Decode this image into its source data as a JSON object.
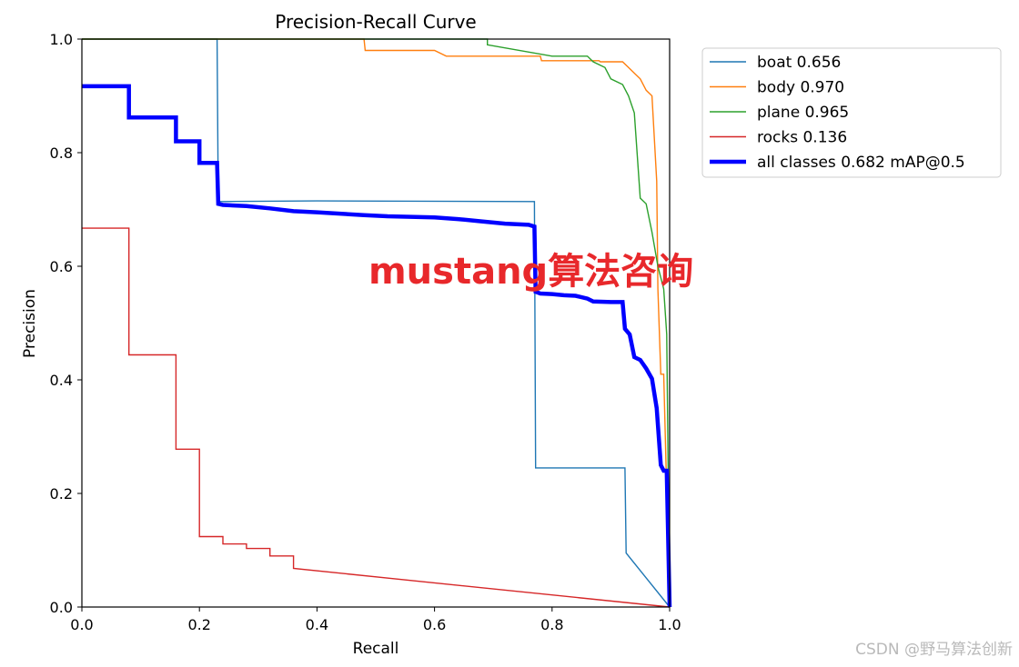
{
  "chart_data": {
    "type": "line",
    "title": "Precision-Recall Curve",
    "xlabel": "Recall",
    "ylabel": "Precision",
    "xlim": [
      0,
      1
    ],
    "ylim": [
      0,
      1
    ],
    "xticks": [
      "0.0",
      "0.2",
      "0.4",
      "0.6",
      "0.8",
      "1.0"
    ],
    "yticks": [
      "0.0",
      "0.2",
      "0.4",
      "0.6",
      "0.8",
      "1.0"
    ],
    "grid": false,
    "legend_position": "outside-top-right",
    "series": [
      {
        "name": "boat 0.656",
        "color": "#1f77b4",
        "line_width": "thin",
        "points": [
          [
            0.0,
            1.0
          ],
          [
            0.23,
            1.0
          ],
          [
            0.232,
            0.714
          ],
          [
            0.4,
            0.715
          ],
          [
            0.77,
            0.714
          ],
          [
            0.772,
            0.245
          ],
          [
            0.924,
            0.245
          ],
          [
            0.926,
            0.095
          ],
          [
            1.0,
            0.0
          ]
        ]
      },
      {
        "name": "body 0.970",
        "color": "#ff7f0e",
        "line_width": "thin",
        "points": [
          [
            0.0,
            1.0
          ],
          [
            0.48,
            1.0
          ],
          [
            0.482,
            0.98
          ],
          [
            0.6,
            0.98
          ],
          [
            0.62,
            0.97
          ],
          [
            0.78,
            0.97
          ],
          [
            0.782,
            0.962
          ],
          [
            0.88,
            0.962
          ],
          [
            0.882,
            0.96
          ],
          [
            0.92,
            0.96
          ],
          [
            0.93,
            0.95
          ],
          [
            0.94,
            0.94
          ],
          [
            0.95,
            0.93
          ],
          [
            0.96,
            0.91
          ],
          [
            0.97,
            0.9
          ],
          [
            0.978,
            0.75
          ],
          [
            0.98,
            0.56
          ],
          [
            0.985,
            0.41
          ],
          [
            0.99,
            0.41
          ],
          [
            1.0,
            0.0
          ]
        ]
      },
      {
        "name": "plane 0.965",
        "color": "#2ca02c",
        "line_width": "thin",
        "points": [
          [
            0.0,
            1.0
          ],
          [
            0.69,
            1.0
          ],
          [
            0.69,
            0.99
          ],
          [
            0.8,
            0.97
          ],
          [
            0.86,
            0.97
          ],
          [
            0.87,
            0.96
          ],
          [
            0.89,
            0.95
          ],
          [
            0.9,
            0.93
          ],
          [
            0.92,
            0.92
          ],
          [
            0.93,
            0.9
          ],
          [
            0.94,
            0.87
          ],
          [
            0.95,
            0.72
          ],
          [
            0.96,
            0.71
          ],
          [
            0.97,
            0.66
          ],
          [
            0.98,
            0.6
          ],
          [
            0.985,
            0.58
          ],
          [
            0.99,
            0.56
          ],
          [
            0.995,
            0.48
          ],
          [
            1.0,
            0.0
          ]
        ]
      },
      {
        "name": "rocks 0.136",
        "color": "#d62728",
        "line_width": "thin",
        "points": [
          [
            0.0,
            0.667
          ],
          [
            0.08,
            0.667
          ],
          [
            0.08,
            0.444
          ],
          [
            0.16,
            0.444
          ],
          [
            0.16,
            0.278
          ],
          [
            0.2,
            0.278
          ],
          [
            0.2,
            0.124
          ],
          [
            0.24,
            0.124
          ],
          [
            0.24,
            0.111
          ],
          [
            0.28,
            0.111
          ],
          [
            0.28,
            0.103
          ],
          [
            0.32,
            0.103
          ],
          [
            0.32,
            0.09
          ],
          [
            0.36,
            0.09
          ],
          [
            0.36,
            0.068
          ],
          [
            1.0,
            0.0
          ]
        ]
      },
      {
        "name": "all classes 0.682 mAP@0.5",
        "color": "#0000ff",
        "line_width": "thick",
        "points": [
          [
            0.0,
            0.917
          ],
          [
            0.08,
            0.917
          ],
          [
            0.08,
            0.862
          ],
          [
            0.16,
            0.862
          ],
          [
            0.16,
            0.82
          ],
          [
            0.2,
            0.82
          ],
          [
            0.2,
            0.782
          ],
          [
            0.23,
            0.782
          ],
          [
            0.232,
            0.71
          ],
          [
            0.24,
            0.708
          ],
          [
            0.28,
            0.706
          ],
          [
            0.32,
            0.702
          ],
          [
            0.36,
            0.697
          ],
          [
            0.4,
            0.695
          ],
          [
            0.48,
            0.69
          ],
          [
            0.52,
            0.688
          ],
          [
            0.6,
            0.686
          ],
          [
            0.64,
            0.683
          ],
          [
            0.68,
            0.679
          ],
          [
            0.7,
            0.677
          ],
          [
            0.72,
            0.675
          ],
          [
            0.76,
            0.673
          ],
          [
            0.77,
            0.67
          ],
          [
            0.772,
            0.555
          ],
          [
            0.78,
            0.552
          ],
          [
            0.8,
            0.551
          ],
          [
            0.82,
            0.549
          ],
          [
            0.84,
            0.548
          ],
          [
            0.86,
            0.543
          ],
          [
            0.87,
            0.538
          ],
          [
            0.9,
            0.537
          ],
          [
            0.92,
            0.537
          ],
          [
            0.924,
            0.49
          ],
          [
            0.932,
            0.48
          ],
          [
            0.94,
            0.44
          ],
          [
            0.95,
            0.435
          ],
          [
            0.96,
            0.42
          ],
          [
            0.97,
            0.402
          ],
          [
            0.978,
            0.35
          ],
          [
            0.985,
            0.25
          ],
          [
            0.99,
            0.24
          ],
          [
            0.995,
            0.24
          ],
          [
            1.0,
            0.0
          ]
        ]
      }
    ]
  },
  "overlay_text": "mustang算法咨询",
  "watermark_text": "CSDN @野马算法创新"
}
